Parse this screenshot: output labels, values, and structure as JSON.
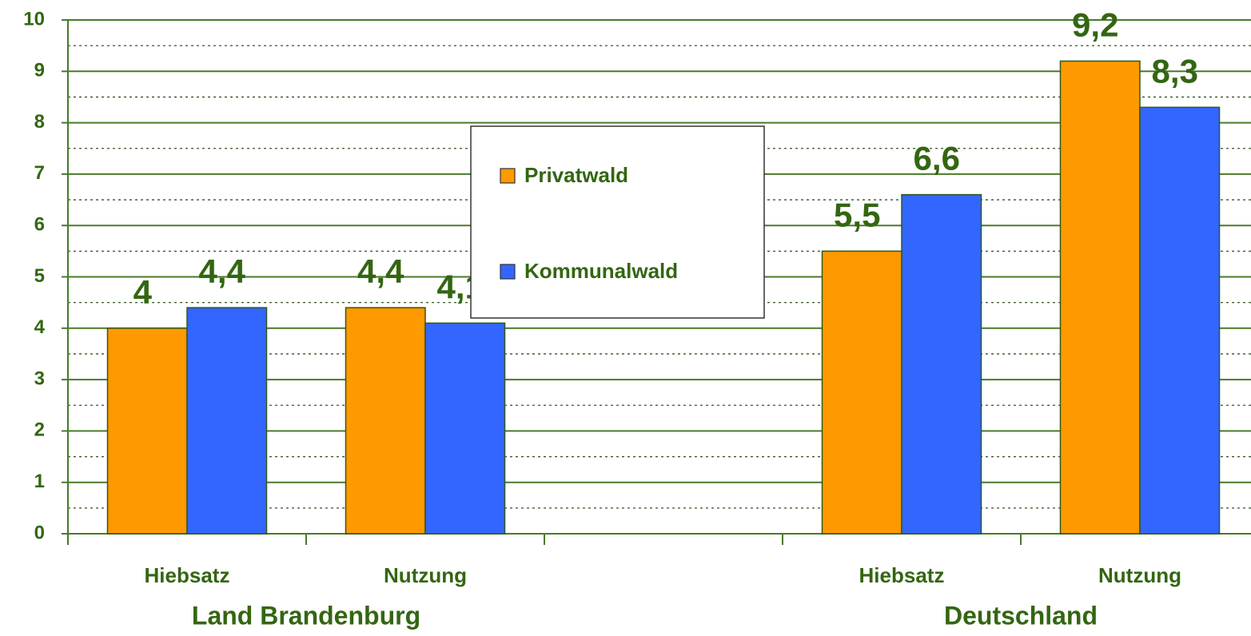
{
  "chart_data": {
    "type": "bar",
    "categories": [
      "Hiebsatz",
      "Nutzung",
      null,
      "Hiebsatz",
      "Nutzung"
    ],
    "group_labels": [
      "Land Brandenburg",
      "Deutschland"
    ],
    "series": [
      {
        "name": "Privatwald",
        "color": "#ff9900",
        "values": [
          4,
          4.4,
          null,
          5.5,
          9.2
        ],
        "value_labels": [
          "4",
          "4,4",
          null,
          "5,5",
          "9,2"
        ]
      },
      {
        "name": "Kommunalwald",
        "color": "#3366ff",
        "values": [
          4.4,
          4.1,
          null,
          6.6,
          8.3
        ],
        "value_labels": [
          "4,4",
          "4,1",
          null,
          "6,6",
          "8,3"
        ]
      }
    ],
    "ylim": [
      0,
      10
    ],
    "yticks": [
      0,
      1,
      2,
      3,
      4,
      5,
      6,
      7,
      8,
      9,
      10
    ],
    "minor_yticks": [
      0.5,
      1.5,
      2.5,
      3.5,
      4.5,
      5.5,
      6.5,
      7.5,
      8.5,
      9.5
    ],
    "grid": true,
    "legend": "center"
  }
}
